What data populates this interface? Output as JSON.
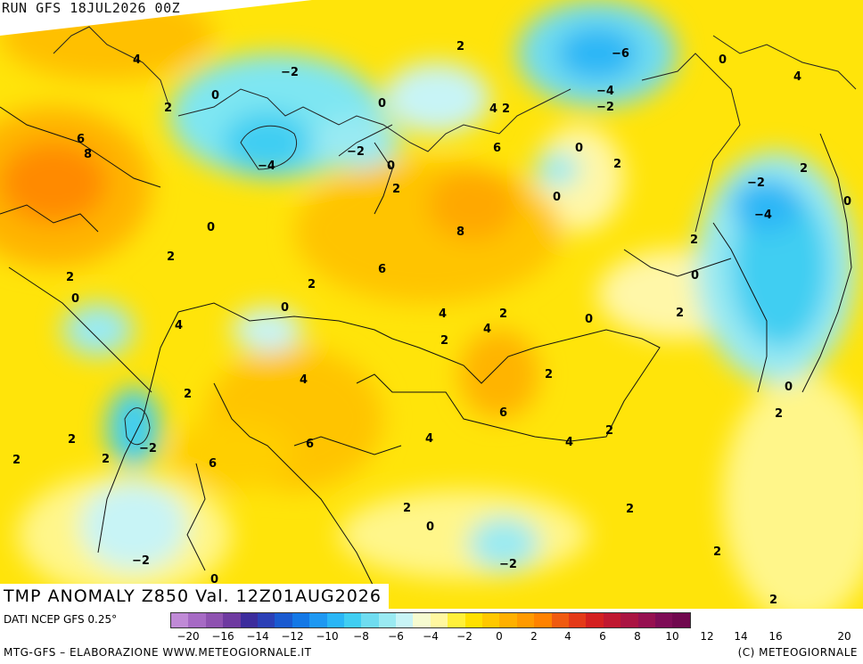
{
  "header": {
    "run_label": "RUN GFS 18JUL2026 00Z"
  },
  "overlay": {
    "anomaly_title": "TMP ANOMALY Z850 Val. 12Z01AUG2026"
  },
  "footer": {
    "source": "DATI NCEP GFS 0.25°",
    "credits_left": "MTG-GFS – ELABORAZIONE WWW.METEOGIORNALE.IT",
    "credits_right": "(C) METEOGIORNALE"
  },
  "legend": {
    "colors": [
      "#c08ad6",
      "#a66ac4",
      "#8e52b0",
      "#6e3aa0",
      "#3c2c9c",
      "#2b3fb6",
      "#1a5ad0",
      "#1478e6",
      "#1e98f2",
      "#2ab6f6",
      "#40cef2",
      "#6fdcf0",
      "#9aeaf2",
      "#c8f4f6",
      "#f6fbd0",
      "#fff7a0",
      "#fff03a",
      "#ffe000",
      "#ffc800",
      "#ffb000",
      "#ff9a00",
      "#ff8200",
      "#f05a10",
      "#e43a18",
      "#d42020",
      "#c01830",
      "#aa1442",
      "#961050",
      "#7e0c56",
      "#70084e"
    ],
    "ticks": [
      "-20",
      "-18",
      "-16",
      "-14",
      "-12",
      "-10",
      "-8",
      "-6",
      "-4",
      "-2",
      "0",
      "2",
      "4",
      "6",
      "8",
      "10",
      "12",
      "14",
      "16",
      "18",
      "20"
    ],
    "tick_labels_shown": [
      "−20",
      "−16",
      "−14",
      "−12",
      "−10",
      "−8",
      "−6",
      "−4",
      "−2",
      "0",
      "2",
      "4",
      "6",
      "8",
      "10",
      "12",
      "14",
      "16",
      "20"
    ]
  },
  "map_labels": [
    {
      "t": "4"
    },
    {
      "t": "−2"
    },
    {
      "t": "2"
    },
    {
      "t": "−6"
    },
    {
      "t": "0"
    },
    {
      "t": "4"
    },
    {
      "t": "0"
    },
    {
      "t": "2"
    },
    {
      "t": "0"
    },
    {
      "t": "4"
    },
    {
      "t": "2"
    },
    {
      "t": "−4"
    },
    {
      "t": "−2"
    },
    {
      "t": "6"
    },
    {
      "t": "8"
    },
    {
      "t": "−4"
    },
    {
      "t": "−2"
    },
    {
      "t": "0"
    },
    {
      "t": "6"
    },
    {
      "t": "0"
    },
    {
      "t": "2"
    },
    {
      "t": "2"
    },
    {
      "t": "2"
    },
    {
      "t": "0"
    },
    {
      "t": "−2"
    },
    {
      "t": "0"
    },
    {
      "t": "−4"
    },
    {
      "t": "0"
    },
    {
      "t": "8"
    },
    {
      "t": "2"
    },
    {
      "t": "2"
    },
    {
      "t": "6"
    },
    {
      "t": "0"
    },
    {
      "t": "2"
    },
    {
      "t": "0"
    },
    {
      "t": "2"
    },
    {
      "t": "0"
    },
    {
      "t": "4"
    },
    {
      "t": "2"
    },
    {
      "t": "2"
    },
    {
      "t": "4"
    },
    {
      "t": "0"
    },
    {
      "t": "2"
    },
    {
      "t": "4"
    },
    {
      "t": "2"
    },
    {
      "t": "2"
    },
    {
      "t": "0"
    },
    {
      "t": "6"
    },
    {
      "t": "2"
    },
    {
      "t": "4"
    },
    {
      "t": "4"
    },
    {
      "t": "2"
    },
    {
      "t": "−2"
    },
    {
      "t": "2"
    },
    {
      "t": "6"
    },
    {
      "t": "4"
    },
    {
      "t": "6"
    },
    {
      "t": "2"
    },
    {
      "t": "2"
    },
    {
      "t": "0"
    },
    {
      "t": "2"
    },
    {
      "t": "−2"
    },
    {
      "t": "−2"
    },
    {
      "t": "2"
    },
    {
      "t": "0"
    },
    {
      "t": "2"
    },
    {
      "t": "2"
    }
  ]
}
